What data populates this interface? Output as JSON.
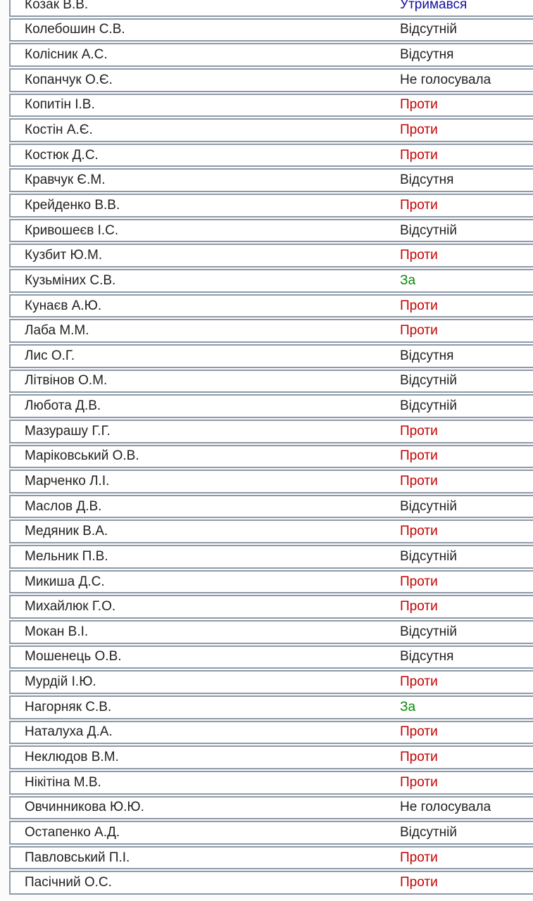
{
  "colors": {
    "against": "#c40000",
    "for": "#0a8a0a",
    "abstain": "#1010a0",
    "neutral": "#222222",
    "border": "#8e9aa8"
  },
  "rows": [
    {
      "name": "Козак В.В.",
      "vote": "Утримався",
      "type": "abstain"
    },
    {
      "name": "Колебошин С.В.",
      "vote": "Відсутній",
      "type": "neutral"
    },
    {
      "name": "Колісник А.С.",
      "vote": "Відсутня",
      "type": "neutral"
    },
    {
      "name": "Копанчук О.Є.",
      "vote": "Не голосувала",
      "type": "neutral"
    },
    {
      "name": "Копитін І.В.",
      "vote": "Проти",
      "type": "against"
    },
    {
      "name": "Костін А.Є.",
      "vote": "Проти",
      "type": "against"
    },
    {
      "name": "Костюк Д.С.",
      "vote": "Проти",
      "type": "against"
    },
    {
      "name": "Кравчук Є.М.",
      "vote": "Відсутня",
      "type": "neutral"
    },
    {
      "name": "Крейденко В.В.",
      "vote": "Проти",
      "type": "against"
    },
    {
      "name": "Кривошеєв І.С.",
      "vote": "Відсутній",
      "type": "neutral"
    },
    {
      "name": "Кузбит Ю.М.",
      "vote": "Проти",
      "type": "against"
    },
    {
      "name": "Кузьміних С.В.",
      "vote": "За",
      "type": "for"
    },
    {
      "name": "Кунаєв А.Ю.",
      "vote": "Проти",
      "type": "against"
    },
    {
      "name": "Лаба М.М.",
      "vote": "Проти",
      "type": "against"
    },
    {
      "name": "Лис О.Г.",
      "vote": "Відсутня",
      "type": "neutral"
    },
    {
      "name": "Літвінов О.М.",
      "vote": "Відсутній",
      "type": "neutral"
    },
    {
      "name": "Любота Д.В.",
      "vote": "Відсутній",
      "type": "neutral"
    },
    {
      "name": "Мазурашу Г.Г.",
      "vote": "Проти",
      "type": "against"
    },
    {
      "name": "Маріковський О.В.",
      "vote": "Проти",
      "type": "against"
    },
    {
      "name": "Марченко Л.І.",
      "vote": "Проти",
      "type": "against"
    },
    {
      "name": "Маслов Д.В.",
      "vote": "Відсутній",
      "type": "neutral"
    },
    {
      "name": "Медяник В.А.",
      "vote": "Проти",
      "type": "against"
    },
    {
      "name": "Мельник П.В.",
      "vote": "Відсутній",
      "type": "neutral"
    },
    {
      "name": "Микиша Д.С.",
      "vote": "Проти",
      "type": "against"
    },
    {
      "name": "Михайлюк Г.О.",
      "vote": "Проти",
      "type": "against"
    },
    {
      "name": "Мокан В.І.",
      "vote": "Відсутній",
      "type": "neutral"
    },
    {
      "name": "Мошенець О.В.",
      "vote": "Відсутня",
      "type": "neutral"
    },
    {
      "name": "Мурдій І.Ю.",
      "vote": "Проти",
      "type": "against"
    },
    {
      "name": "Нагорняк С.В.",
      "vote": "За",
      "type": "for"
    },
    {
      "name": "Наталуха Д.А.",
      "vote": "Проти",
      "type": "against"
    },
    {
      "name": "Неклюдов В.М.",
      "vote": "Проти",
      "type": "against"
    },
    {
      "name": "Нікітіна М.В.",
      "vote": "Проти",
      "type": "against"
    },
    {
      "name": "Овчинникова Ю.Ю.",
      "vote": "Не голосувала",
      "type": "neutral"
    },
    {
      "name": "Остапенко А.Д.",
      "vote": "Відсутній",
      "type": "neutral"
    },
    {
      "name": "Павловський П.І.",
      "vote": "Проти",
      "type": "against"
    },
    {
      "name": "Пасічний О.С.",
      "vote": "Проти",
      "type": "against"
    }
  ]
}
